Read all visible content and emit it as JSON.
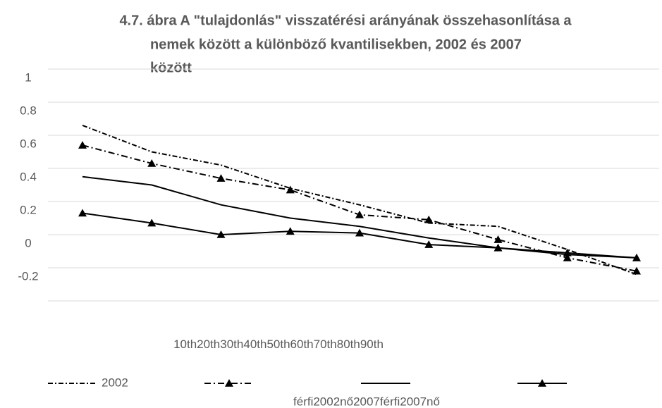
{
  "chart_data": {
    "type": "line",
    "title": [
      "4.7. ábra A \"tulajdonlás\" visszatérési arányának összehasonlítása a",
      "nemek között a különböző kvantilisekben, 2002 és 2007",
      "között"
    ],
    "categories": [
      "10th",
      "20th",
      "30th",
      "40th",
      "50th",
      "60th",
      "70th",
      "80th",
      "90th"
    ],
    "series": [
      {
        "name": "2002",
        "color": "#000000",
        "dash": "7,3,2,3",
        "marker": false,
        "values": [
          0.66,
          0.5,
          0.42,
          0.28,
          0.18,
          0.07,
          0.05,
          -0.09,
          -0.24
        ]
      },
      {
        "color": "#000000",
        "dash": "9,4,2,4",
        "marker": true,
        "values": [
          0.54,
          0.43,
          0.34,
          0.27,
          0.12,
          0.09,
          -0.03,
          -0.14,
          -0.22
        ]
      },
      {
        "color": "#000000",
        "marker": false,
        "values": [
          0.35,
          0.3,
          0.18,
          0.1,
          0.05,
          -0.02,
          -0.08,
          -0.12,
          -0.14
        ]
      },
      {
        "color": "#000000",
        "marker": true,
        "values": [
          0.13,
          0.07,
          0.0,
          0.02,
          0.01,
          -0.06,
          -0.08,
          -0.11,
          -0.14
        ]
      }
    ],
    "legend_caption": "férfi2002nő2007férfi2007nő",
    "ylim": [
      -0.4,
      1
    ],
    "yticks": [
      1,
      0.8,
      0.6,
      0.4,
      0.2,
      0,
      -0.2
    ],
    "grid": true
  }
}
